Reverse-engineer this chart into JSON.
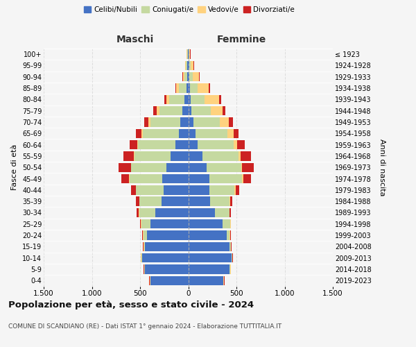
{
  "age_groups": [
    "0-4",
    "5-9",
    "10-14",
    "15-19",
    "20-24",
    "25-29",
    "30-34",
    "35-39",
    "40-44",
    "45-49",
    "50-54",
    "55-59",
    "60-64",
    "65-69",
    "70-74",
    "75-79",
    "80-84",
    "85-89",
    "90-94",
    "95-99",
    "100+"
  ],
  "birth_years": [
    "2019-2023",
    "2014-2018",
    "2009-2013",
    "2004-2008",
    "1999-2003",
    "1994-1998",
    "1989-1993",
    "1984-1988",
    "1979-1983",
    "1974-1978",
    "1969-1973",
    "1964-1968",
    "1959-1963",
    "1954-1958",
    "1949-1953",
    "1944-1948",
    "1939-1943",
    "1934-1938",
    "1929-1933",
    "1924-1928",
    "≤ 1923"
  ],
  "maschi": {
    "celibi": [
      390,
      450,
      480,
      450,
      430,
      395,
      340,
      275,
      255,
      270,
      230,
      185,
      135,
      100,
      85,
      60,
      40,
      20,
      10,
      10,
      5
    ],
    "coniugati": [
      5,
      5,
      5,
      10,
      35,
      90,
      170,
      230,
      285,
      340,
      360,
      370,
      385,
      370,
      310,
      240,
      160,
      80,
      30,
      15,
      5
    ],
    "vedovi": [
      5,
      5,
      5,
      5,
      5,
      5,
      5,
      5,
      5,
      5,
      5,
      10,
      10,
      15,
      20,
      30,
      30,
      25,
      15,
      5,
      5
    ],
    "divorziati": [
      5,
      5,
      5,
      5,
      5,
      10,
      20,
      35,
      50,
      80,
      130,
      110,
      80,
      55,
      45,
      30,
      20,
      10,
      5,
      5,
      5
    ]
  },
  "femmine": {
    "nubili": [
      360,
      430,
      450,
      430,
      400,
      355,
      280,
      230,
      220,
      220,
      190,
      150,
      100,
      75,
      55,
      35,
      25,
      15,
      10,
      10,
      5
    ],
    "coniugate": [
      5,
      5,
      5,
      10,
      30,
      80,
      145,
      200,
      260,
      340,
      360,
      370,
      370,
      335,
      275,
      200,
      145,
      80,
      35,
      15,
      5
    ],
    "vedove": [
      5,
      5,
      5,
      5,
      5,
      5,
      5,
      5,
      10,
      10,
      10,
      20,
      35,
      60,
      90,
      120,
      150,
      120,
      70,
      30,
      10
    ],
    "divorziate": [
      5,
      5,
      5,
      5,
      5,
      5,
      15,
      25,
      40,
      80,
      120,
      110,
      80,
      55,
      45,
      30,
      20,
      10,
      5,
      5,
      5
    ]
  },
  "colors": {
    "celibi": "#4472C4",
    "coniugati": "#c5d9a0",
    "vedovi": "#FFD27F",
    "divorziati": "#CC2222"
  },
  "title": "Popolazione per età, sesso e stato civile - 2024",
  "subtitle": "COMUNE DI SCANDIANO (RE) - Dati ISTAT 1° gennaio 2024 - Elaborazione TUTTITALIA.IT",
  "xlabel_maschi": "Maschi",
  "xlabel_femmine": "Femmine",
  "ylabel_left": "Fasce di età",
  "ylabel_right": "Anni di nascita",
  "xlim": 1500,
  "xtick_labels": [
    "1.500",
    "1.000",
    "500",
    "0",
    "500",
    "1.000",
    "1.500"
  ],
  "legend_labels": [
    "Celibi/Nubili",
    "Coniugati/e",
    "Vedovi/e",
    "Divorziati/e"
  ],
  "bg_color": "#f5f5f5"
}
